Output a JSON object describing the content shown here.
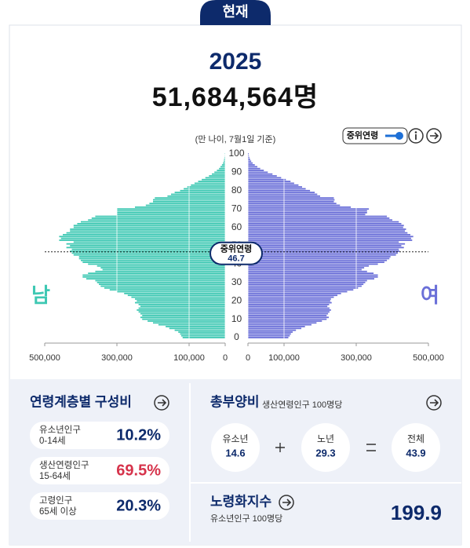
{
  "tab": "현재",
  "year": "2025",
  "total": "51,684,564명",
  "note": "(만 나이, 7월1일 기준)",
  "toggle_label": "중위연령",
  "chart_data": {
    "type": "pyramid",
    "ages": [
      0,
      1,
      2,
      3,
      4,
      5,
      6,
      7,
      8,
      9,
      10,
      11,
      12,
      13,
      14,
      15,
      16,
      17,
      18,
      19,
      20,
      21,
      22,
      23,
      24,
      25,
      26,
      27,
      28,
      29,
      30,
      31,
      32,
      33,
      34,
      35,
      36,
      37,
      38,
      39,
      40,
      41,
      42,
      43,
      44,
      45,
      46,
      47,
      48,
      49,
      50,
      51,
      52,
      53,
      54,
      55,
      56,
      57,
      58,
      59,
      60,
      61,
      62,
      63,
      64,
      65,
      66,
      67,
      68,
      69,
      70,
      71,
      72,
      73,
      74,
      75,
      76,
      77,
      78,
      79,
      80,
      81,
      82,
      83,
      84,
      85,
      86,
      87,
      88,
      89,
      90,
      91,
      92,
      93,
      94,
      95,
      96,
      97,
      98,
      99,
      100
    ],
    "series": [
      {
        "name": "남",
        "color": "#3ec8b3",
        "values": [
          118000,
          122000,
          125000,
          130000,
          140000,
          155000,
          165000,
          185000,
          200000,
          215000,
          230000,
          235000,
          230000,
          235000,
          240000,
          245000,
          240000,
          235000,
          240000,
          250000,
          245000,
          250000,
          260000,
          270000,
          280000,
          300000,
          320000,
          335000,
          345000,
          350000,
          355000,
          360000,
          385000,
          395000,
          395000,
          380000,
          360000,
          340000,
          345000,
          355000,
          380000,
          395000,
          400000,
          405000,
          405000,
          420000,
          425000,
          430000,
          425000,
          440000,
          430000,
          440000,
          420000,
          460000,
          455000,
          460000,
          450000,
          440000,
          430000,
          430000,
          420000,
          420000,
          410000,
          400000,
          380000,
          370000,
          360000,
          300000,
          300000,
          300000,
          300000,
          250000,
          220000,
          210000,
          200000,
          200000,
          195000,
          160000,
          150000,
          140000,
          125000,
          115000,
          105000,
          95000,
          85000,
          75000,
          65000,
          55000,
          45000,
          37000,
          30000,
          23000,
          17000,
          13000,
          9000,
          6000,
          4000,
          3000,
          2000,
          1200,
          800
        ]
      },
      {
        "name": "여",
        "color": "#6a6fd8",
        "values": [
          112000,
          116000,
          119000,
          124000,
          133000,
          148000,
          158000,
          176000,
          190000,
          205000,
          218000,
          224000,
          218000,
          222000,
          226000,
          230000,
          226000,
          220000,
          225000,
          232000,
          228000,
          230000,
          238000,
          248000,
          258000,
          275000,
          292000,
          305000,
          315000,
          320000,
          325000,
          330000,
          350000,
          360000,
          360000,
          348000,
          330000,
          315000,
          322000,
          335000,
          360000,
          378000,
          385000,
          392000,
          395000,
          410000,
          415000,
          420000,
          418000,
          432000,
          425000,
          435000,
          418000,
          455000,
          452000,
          458000,
          450000,
          442000,
          435000,
          438000,
          430000,
          432000,
          425000,
          418000,
          400000,
          392000,
          385000,
          325000,
          330000,
          330000,
          335000,
          285000,
          255000,
          245000,
          238000,
          240000,
          238000,
          200000,
          192000,
          185000,
          172000,
          160000,
          150000,
          140000,
          128000,
          118000,
          105000,
          92000,
          80000,
          68000,
          55000,
          44000,
          34000,
          26000,
          19000,
          13000,
          9000,
          6000,
          4000,
          2500,
          2000
        ]
      }
    ],
    "xlim": [
      0,
      500000
    ],
    "xticks": [
      0,
      {
        "value": 100000,
        "label": "100,000"
      },
      {
        "value": 300000,
        "label": "300,000"
      },
      {
        "value": 500000,
        "label": "500,000"
      }
    ],
    "ylim": [
      0,
      100
    ],
    "yticks": [
      0,
      10,
      20,
      30,
      40,
      50,
      60,
      70,
      80,
      90,
      100
    ],
    "grid": true,
    "median_age": {
      "label": "중위연령",
      "value": 46.7
    }
  },
  "composition": {
    "title": "연령계층별 구성비",
    "rows": [
      {
        "name": "유소년인구",
        "range": "0-14세",
        "value": "10.2%"
      },
      {
        "name": "생산연령인구",
        "range": "15-64세",
        "value": "69.5%"
      },
      {
        "name": "고령인구",
        "range": "65세 이상",
        "value": "20.3%"
      }
    ]
  },
  "dependency": {
    "title": "총부양비",
    "subtitle": "생산연령인구 100명당",
    "items": [
      {
        "label": "유소년",
        "value": "14.6"
      },
      {
        "label": "노년",
        "value": "29.3"
      },
      {
        "label": "전체",
        "value": "43.9"
      }
    ]
  },
  "aging": {
    "title": "노령화지수",
    "subtitle": "유소년인구 100명당",
    "value": "199.9"
  }
}
